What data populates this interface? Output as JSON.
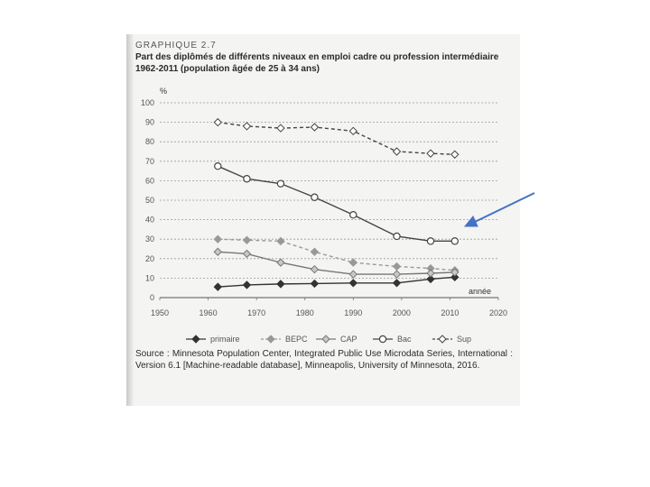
{
  "header": {
    "kicker": "GRAPHIQUE 2.7",
    "title": "Part des diplômés de différents niveaux en emploi cadre ou profession intermédiaire 1962-2011 (population âgée de 25 à 34 ans)"
  },
  "source": "Source : Minnesota Population Center, Integrated Public Use Microdata Series, International : Version 6.1 [Machine-readable database], Minneapolis, University of Minnesota, 2016.",
  "chart_data": {
    "type": "line",
    "ylabel": "%",
    "xlabel": "année",
    "xlim": [
      1950,
      2020
    ],
    "ylim": [
      0,
      100
    ],
    "xticks": [
      1950,
      1960,
      1970,
      1980,
      1990,
      2000,
      2010,
      2020
    ],
    "yticks": [
      0,
      10,
      20,
      30,
      40,
      50,
      60,
      70,
      80,
      90,
      100
    ],
    "grid": "horizontal dotted",
    "legend_position": "bottom",
    "series": [
      {
        "name": "primaire",
        "color": "#333333",
        "style": "solid",
        "marker": "filled-diamond",
        "x": [
          1962,
          1968,
          1975,
          1982,
          1990,
          1999,
          2006,
          2011
        ],
        "y": [
          5.5,
          6.5,
          7,
          7.2,
          7.5,
          7.5,
          9.5,
          10.5
        ]
      },
      {
        "name": "BEPC",
        "color": "#999999",
        "style": "dashed",
        "marker": "filled-diamond",
        "x": [
          1962,
          1968,
          1975,
          1982,
          1990,
          1999,
          2006,
          2011
        ],
        "y": [
          30,
          29.5,
          29,
          23.5,
          18,
          16,
          15,
          14
        ]
      },
      {
        "name": "CAP",
        "color": "#777777",
        "style": "solid",
        "marker": "grey-diamond",
        "x": [
          1962,
          1968,
          1975,
          1982,
          1990,
          1999,
          2006,
          2011
        ],
        "y": [
          23.5,
          22.5,
          18,
          14.5,
          12,
          12,
          12.5,
          13
        ]
      },
      {
        "name": "Bac",
        "color": "#444444",
        "style": "solid",
        "marker": "open-circle",
        "x": [
          1962,
          1968,
          1975,
          1982,
          1990,
          1999,
          2006,
          2011
        ],
        "y": [
          67.5,
          61,
          58.5,
          51.5,
          42.5,
          31.5,
          29,
          29
        ]
      },
      {
        "name": "Sup",
        "color": "#444444",
        "style": "dashed",
        "marker": "open-diamond",
        "x": [
          1962,
          1968,
          1975,
          1982,
          1990,
          1999,
          2006,
          2011
        ],
        "y": [
          90,
          88,
          87,
          87.5,
          85.5,
          75,
          74,
          73.5
        ]
      }
    ]
  },
  "annotation": {
    "arrow_color": "#4472c4"
  }
}
